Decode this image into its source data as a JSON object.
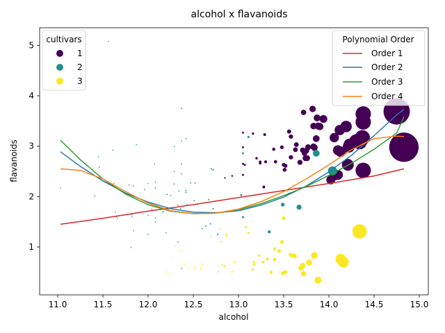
{
  "chart_data": {
    "type": "scatter",
    "title": "alcohol x flavanoids",
    "xlabel": "alcohol",
    "ylabel": "flavanoids",
    "xlim": [
      10.8,
      15.1
    ],
    "ylim": [
      0.05,
      5.35
    ],
    "xticks": [
      11.0,
      11.5,
      12.0,
      12.5,
      13.0,
      13.5,
      14.0,
      14.5,
      15.0
    ],
    "yticks": [
      1,
      2,
      3,
      4,
      5
    ],
    "grid": false,
    "size_encoding": "marker area grows with alcohol",
    "legends": [
      {
        "title": "cultivars",
        "placement": "top-left",
        "entries": [
          {
            "label": "1",
            "color": "#440154"
          },
          {
            "label": "2",
            "color": "#21918c"
          },
          {
            "label": "3",
            "color": "#fde725"
          }
        ]
      },
      {
        "title": "Polynomial Order",
        "placement": "top-right",
        "entries": [
          {
            "label": "Order 1",
            "color": "#d62728"
          },
          {
            "label": "Order 2",
            "color": "#1f77b4"
          },
          {
            "label": "Order 3",
            "color": "#2ca02c"
          },
          {
            "label": "Order 4",
            "color": "#ff7f0e"
          }
        ]
      }
    ],
    "series": [
      {
        "name": "1",
        "color": "#440154",
        "points": [
          [
            12.85,
            2.37
          ],
          [
            12.93,
            2.41
          ],
          [
            13.05,
            2.43
          ],
          [
            13.05,
            2.65
          ],
          [
            13.05,
            2.98
          ],
          [
            13.05,
            3.27
          ],
          [
            13.07,
            2.63
          ],
          [
            13.16,
            3.25
          ],
          [
            13.2,
            2.76
          ],
          [
            13.24,
            2.69
          ],
          [
            13.24,
            2.66
          ],
          [
            13.28,
            2.19
          ],
          [
            13.29,
            3.23
          ],
          [
            13.3,
            2.69
          ],
          [
            13.39,
            2.94
          ],
          [
            13.41,
            2.69
          ],
          [
            13.48,
            2.98
          ],
          [
            13.5,
            2.63
          ],
          [
            13.51,
            2.53
          ],
          [
            13.52,
            2.61
          ],
          [
            13.56,
            3.29
          ],
          [
            13.58,
            2.78
          ],
          [
            13.58,
            3.19
          ],
          [
            13.63,
            2.93
          ],
          [
            13.64,
            3.03
          ],
          [
            13.68,
            2.68
          ],
          [
            13.71,
            2.92
          ],
          [
            13.72,
            3.67
          ],
          [
            13.73,
            2.86
          ],
          [
            13.74,
            2.76
          ],
          [
            13.75,
            2.91
          ],
          [
            13.76,
            2.76
          ],
          [
            13.77,
            2.98
          ],
          [
            13.82,
            3.74
          ],
          [
            13.83,
            3.4
          ],
          [
            13.83,
            2.99
          ],
          [
            13.84,
            2.97
          ],
          [
            13.86,
            3.15
          ],
          [
            13.87,
            3.56
          ],
          [
            13.88,
            3.4
          ],
          [
            13.9,
            3.39
          ],
          [
            13.94,
            3.54
          ],
          [
            14.02,
            2.33
          ],
          [
            14.06,
            2.41
          ],
          [
            14.06,
            3.17
          ],
          [
            14.1,
            2.43
          ],
          [
            14.1,
            2.92
          ],
          [
            14.12,
            3.32
          ],
          [
            14.13,
            2.89
          ],
          [
            14.19,
            3.39
          ],
          [
            14.21,
            2.63
          ],
          [
            14.22,
            2.99
          ],
          [
            14.23,
            3.03
          ],
          [
            14.3,
            3.1
          ],
          [
            14.34,
            3.08
          ],
          [
            14.37,
            3.17
          ],
          [
            14.38,
            2.52
          ],
          [
            14.38,
            3.64
          ],
          [
            14.38,
            3.48
          ],
          [
            14.75,
            3.69
          ],
          [
            14.83,
            2.98
          ]
        ]
      },
      {
        "name": "2",
        "color": "#21918c",
        "points": [
          [
            11.03,
            2.17
          ],
          [
            11.41,
            2.01
          ],
          [
            11.45,
            2.79
          ],
          [
            11.46,
            2.58
          ],
          [
            11.56,
            5.08
          ],
          [
            11.61,
            2.92
          ],
          [
            11.62,
            2.26
          ],
          [
            11.64,
            1.69
          ],
          [
            11.65,
            1.6
          ],
          [
            11.66,
            1.57
          ],
          [
            11.76,
            2.04
          ],
          [
            11.79,
            2.23
          ],
          [
            11.81,
            0.99
          ],
          [
            11.82,
            1.64
          ],
          [
            11.82,
            1.6
          ],
          [
            11.84,
            1.32
          ],
          [
            11.84,
            2.21
          ],
          [
            11.87,
            3.03
          ],
          [
            11.96,
            2.14
          ],
          [
            12.0,
            1.63
          ],
          [
            12.0,
            1.25
          ],
          [
            12.0,
            2.26
          ],
          [
            12.04,
            1.75
          ],
          [
            12.07,
            2.65
          ],
          [
            12.08,
            1.5
          ],
          [
            12.08,
            1.58
          ],
          [
            12.08,
            2.17
          ],
          [
            12.08,
            2.29
          ],
          [
            12.16,
            1.69
          ],
          [
            12.17,
            1.71
          ],
          [
            12.2,
            1.28
          ],
          [
            12.21,
            2.04
          ],
          [
            12.22,
            1.76
          ],
          [
            12.25,
            2.02
          ],
          [
            12.25,
            1.78
          ],
          [
            12.29,
            2.99
          ],
          [
            12.29,
            2.25
          ],
          [
            12.29,
            2.5
          ],
          [
            12.33,
            1.1
          ],
          [
            12.33,
            1.83
          ],
          [
            12.34,
            2.11
          ],
          [
            12.36,
            1.76
          ],
          [
            12.37,
            3.75
          ],
          [
            12.37,
            0.57
          ],
          [
            12.37,
            2.65
          ],
          [
            12.37,
            3.1
          ],
          [
            12.37,
            2.45
          ],
          [
            12.42,
            2.12
          ],
          [
            12.42,
            2.08
          ],
          [
            12.42,
            3.15
          ],
          [
            12.43,
            1.84
          ],
          [
            12.47,
            2.27
          ],
          [
            12.51,
            1.92
          ],
          [
            12.52,
            2.27
          ],
          [
            12.6,
            1.36
          ],
          [
            12.64,
            1.41
          ],
          [
            12.67,
            1.94
          ],
          [
            12.69,
            1.46
          ],
          [
            12.7,
            2.55
          ],
          [
            12.72,
            2.53
          ],
          [
            12.72,
            1.76
          ],
          [
            12.77,
            1.25
          ],
          [
            13.03,
            2.03
          ],
          [
            13.05,
            1.59
          ],
          [
            13.05,
            2.86
          ],
          [
            13.11,
            3.18
          ],
          [
            13.34,
            1.3
          ],
          [
            13.49,
            1.84
          ],
          [
            13.67,
            1.79
          ],
          [
            13.86,
            2.86
          ],
          [
            14.04,
            2.51
          ]
        ]
      },
      {
        "name": "3",
        "color": "#fde725",
        "points": [
          [
            12.2,
            0.5
          ],
          [
            12.25,
            0.79
          ],
          [
            12.25,
            0.47
          ],
          [
            12.3,
            1.02
          ],
          [
            12.36,
            0.92
          ],
          [
            12.4,
            0.66
          ],
          [
            12.45,
            0.58
          ],
          [
            12.51,
            0.58
          ],
          [
            12.53,
            0.6
          ],
          [
            12.58,
            0.58
          ],
          [
            12.6,
            0.66
          ],
          [
            12.7,
            1.2
          ],
          [
            12.77,
            0.51
          ],
          [
            12.79,
            1.36
          ],
          [
            12.81,
            1.1
          ],
          [
            12.82,
            0.65
          ],
          [
            12.84,
            0.62
          ],
          [
            12.85,
            0.63
          ],
          [
            12.86,
            1.25
          ],
          [
            12.87,
            1.22
          ],
          [
            12.93,
            0.51
          ],
          [
            12.96,
            0.7
          ],
          [
            13.08,
            1.39
          ],
          [
            13.11,
            1.28
          ],
          [
            13.16,
            0.55
          ],
          [
            13.17,
            0.65
          ],
          [
            13.17,
            0.7
          ],
          [
            13.23,
            0.83
          ],
          [
            13.27,
            0.7
          ],
          [
            13.32,
            0.76
          ],
          [
            13.36,
            0.5
          ],
          [
            13.4,
            0.96
          ],
          [
            13.4,
            0.75
          ],
          [
            13.45,
            0.92
          ],
          [
            13.48,
            1.1
          ],
          [
            13.49,
            0.48
          ],
          [
            13.5,
            1.57
          ],
          [
            13.52,
            0.5
          ],
          [
            13.58,
            0.84
          ],
          [
            13.62,
            0.82
          ],
          [
            13.69,
            0.58
          ],
          [
            13.71,
            0.63
          ],
          [
            13.72,
            0.47
          ],
          [
            13.78,
            0.69
          ],
          [
            13.84,
            0.83
          ],
          [
            13.88,
            0.34
          ],
          [
            14.13,
            0.76
          ],
          [
            14.16,
            0.7
          ],
          [
            14.34,
            1.31
          ]
        ]
      }
    ],
    "fit_lines": [
      {
        "name": "Order 1",
        "color": "#d62728",
        "x": [
          11.03,
          11.5,
          12.0,
          12.5,
          13.0,
          13.5,
          14.0,
          14.5,
          14.83
        ],
        "y": [
          1.45,
          1.57,
          1.71,
          1.84,
          1.98,
          2.12,
          2.26,
          2.41,
          2.55
        ]
      },
      {
        "name": "Order 2",
        "color": "#1f77b4",
        "x": [
          11.03,
          11.25,
          11.5,
          11.75,
          12.0,
          12.25,
          12.5,
          12.75,
          13.0,
          13.25,
          13.5,
          13.75,
          14.0,
          14.25,
          14.5,
          14.75,
          14.83
        ],
        "y": [
          2.89,
          2.6,
          2.31,
          2.07,
          1.89,
          1.76,
          1.69,
          1.68,
          1.72,
          1.83,
          1.99,
          2.21,
          2.49,
          2.82,
          3.21,
          3.62,
          3.73
        ]
      },
      {
        "name": "Order 3",
        "color": "#2ca02c",
        "x": [
          11.03,
          11.25,
          11.5,
          11.75,
          12.0,
          12.25,
          12.5,
          12.75,
          13.0,
          13.25,
          13.5,
          13.75,
          14.0,
          14.25,
          14.5,
          14.75,
          14.83
        ],
        "y": [
          3.12,
          2.73,
          2.35,
          2.05,
          1.84,
          1.71,
          1.66,
          1.67,
          1.74,
          1.86,
          2.02,
          2.2,
          2.42,
          2.66,
          2.94,
          3.26,
          3.58
        ]
      },
      {
        "name": "Order 4",
        "color": "#ff7f0e",
        "x": [
          11.03,
          11.25,
          11.5,
          11.75,
          12.0,
          12.25,
          12.5,
          12.75,
          13.0,
          13.25,
          13.5,
          13.75,
          14.0,
          14.25,
          14.5,
          14.75,
          14.83
        ],
        "y": [
          2.55,
          2.52,
          2.35,
          2.1,
          1.87,
          1.72,
          1.66,
          1.67,
          1.75,
          1.9,
          2.1,
          2.35,
          2.63,
          2.93,
          3.15,
          3.2,
          3.19
        ]
      }
    ]
  }
}
